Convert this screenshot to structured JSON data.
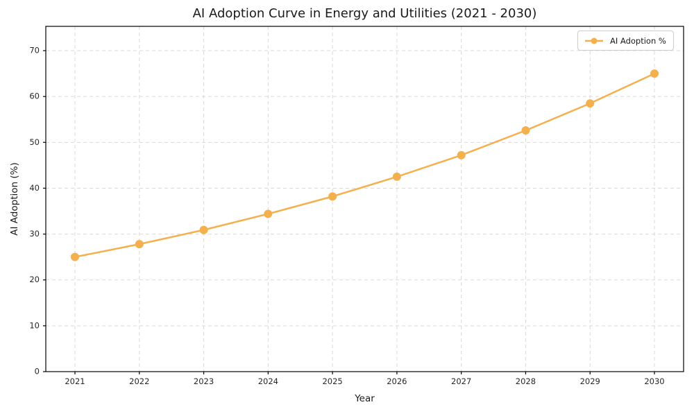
{
  "chart_data": {
    "type": "line",
    "title": "AI Adoption Curve in Energy and Utilities (2021 - 2030)",
    "xlabel": "Year",
    "ylabel": "AI Adoption (%)",
    "categories": [
      "2021",
      "2022",
      "2023",
      "2024",
      "2025",
      "2026",
      "2027",
      "2028",
      "2029",
      "2030"
    ],
    "series": [
      {
        "name": "AI Adoption %",
        "values": [
          25.0,
          27.8,
          30.9,
          34.4,
          38.2,
          42.5,
          47.2,
          52.6,
          58.5,
          65.0
        ]
      }
    ],
    "yticks": [
      0,
      10,
      20,
      30,
      40,
      50,
      60,
      70
    ],
    "ylim": [
      0,
      75.3
    ],
    "grid": "dashed",
    "legend_position": "upper right",
    "marker": "circle"
  },
  "colors": {
    "line": "#F5B04E",
    "marker": "#F5B04E",
    "grid": "#D9D9D9",
    "spine": "#000000",
    "tick_text": "#262626",
    "title_text": "#1a1a1a"
  }
}
